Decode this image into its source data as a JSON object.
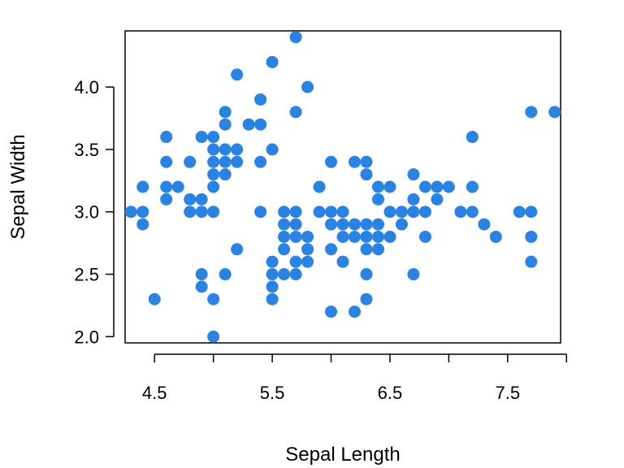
{
  "chart_data": {
    "type": "scatter",
    "title": "",
    "xlabel": "Sepal Length",
    "ylabel": "Sepal Width",
    "xlim": [
      4.25,
      7.95
    ],
    "ylim": [
      1.95,
      4.45
    ],
    "x_ticks": [
      4.5,
      5,
      5.5,
      6,
      6.5,
      7,
      7.5,
      8
    ],
    "x_tick_labels": [
      "4.5",
      "",
      "5.5",
      "",
      "6.5",
      "",
      "7.5",
      ""
    ],
    "y_ticks": [
      2.0,
      2.5,
      3.0,
      3.5,
      4.0
    ],
    "y_tick_labels": [
      "2.0",
      "2.5",
      "3.0",
      "3.5",
      "4.0"
    ],
    "grid": false,
    "marker_color": "#2A83E2",
    "series": [
      {
        "points": [
          [
            4.3,
            3.0
          ],
          [
            4.4,
            3.0
          ],
          [
            4.4,
            2.9
          ],
          [
            4.4,
            3.2
          ],
          [
            4.5,
            2.3
          ],
          [
            4.6,
            3.6
          ],
          [
            4.6,
            3.4
          ],
          [
            4.6,
            3.2
          ],
          [
            4.6,
            3.1
          ],
          [
            4.7,
            3.2
          ],
          [
            4.8,
            3.4
          ],
          [
            4.8,
            3.1
          ],
          [
            4.8,
            3.0
          ],
          [
            4.9,
            3.6
          ],
          [
            4.9,
            3.1
          ],
          [
            4.9,
            3.0
          ],
          [
            4.9,
            2.5
          ],
          [
            4.9,
            2.4
          ],
          [
            5.0,
            3.6
          ],
          [
            5.0,
            3.5
          ],
          [
            5.0,
            3.4
          ],
          [
            5.0,
            3.3
          ],
          [
            5.0,
            3.2
          ],
          [
            5.0,
            3.0
          ],
          [
            5.0,
            2.3
          ],
          [
            5.0,
            2.0
          ],
          [
            5.1,
            3.8
          ],
          [
            5.1,
            3.7
          ],
          [
            5.1,
            3.5
          ],
          [
            5.1,
            3.4
          ],
          [
            5.1,
            3.3
          ],
          [
            5.1,
            2.5
          ],
          [
            5.2,
            4.1
          ],
          [
            5.2,
            3.5
          ],
          [
            5.2,
            3.4
          ],
          [
            5.2,
            2.7
          ],
          [
            5.3,
            3.7
          ],
          [
            5.4,
            3.9
          ],
          [
            5.4,
            3.7
          ],
          [
            5.4,
            3.4
          ],
          [
            5.4,
            3.0
          ],
          [
            5.5,
            4.2
          ],
          [
            5.5,
            3.5
          ],
          [
            5.5,
            2.6
          ],
          [
            5.5,
            2.5
          ],
          [
            5.5,
            2.4
          ],
          [
            5.5,
            2.3
          ],
          [
            5.6,
            3.0
          ],
          [
            5.6,
            2.9
          ],
          [
            5.6,
            2.8
          ],
          [
            5.6,
            2.7
          ],
          [
            5.6,
            2.5
          ],
          [
            5.7,
            4.4
          ],
          [
            5.7,
            3.8
          ],
          [
            5.7,
            3.0
          ],
          [
            5.7,
            2.9
          ],
          [
            5.7,
            2.8
          ],
          [
            5.7,
            2.6
          ],
          [
            5.7,
            2.5
          ],
          [
            5.8,
            4.0
          ],
          [
            5.8,
            2.8
          ],
          [
            5.8,
            2.7
          ],
          [
            5.8,
            2.6
          ],
          [
            5.9,
            3.2
          ],
          [
            5.9,
            3.0
          ],
          [
            6.0,
            3.4
          ],
          [
            6.0,
            3.0
          ],
          [
            6.0,
            2.9
          ],
          [
            6.0,
            2.7
          ],
          [
            6.0,
            2.2
          ],
          [
            6.1,
            3.0
          ],
          [
            6.1,
            2.9
          ],
          [
            6.1,
            2.8
          ],
          [
            6.1,
            2.6
          ],
          [
            6.2,
            3.4
          ],
          [
            6.2,
            2.9
          ],
          [
            6.2,
            2.8
          ],
          [
            6.2,
            2.2
          ],
          [
            6.3,
            3.4
          ],
          [
            6.3,
            3.3
          ],
          [
            6.3,
            2.9
          ],
          [
            6.3,
            2.8
          ],
          [
            6.3,
            2.7
          ],
          [
            6.3,
            2.5
          ],
          [
            6.3,
            2.3
          ],
          [
            6.4,
            3.2
          ],
          [
            6.4,
            3.1
          ],
          [
            6.4,
            2.9
          ],
          [
            6.4,
            2.8
          ],
          [
            6.4,
            2.7
          ],
          [
            6.5,
            3.2
          ],
          [
            6.5,
            3.0
          ],
          [
            6.5,
            2.8
          ],
          [
            6.6,
            3.0
          ],
          [
            6.6,
            2.9
          ],
          [
            6.7,
            3.3
          ],
          [
            6.7,
            3.1
          ],
          [
            6.7,
            3.0
          ],
          [
            6.7,
            2.5
          ],
          [
            6.8,
            3.2
          ],
          [
            6.8,
            3.0
          ],
          [
            6.8,
            2.8
          ],
          [
            6.9,
            3.2
          ],
          [
            6.9,
            3.1
          ],
          [
            7.0,
            3.2
          ],
          [
            7.1,
            3.0
          ],
          [
            7.2,
            3.6
          ],
          [
            7.2,
            3.2
          ],
          [
            7.2,
            3.0
          ],
          [
            7.3,
            2.9
          ],
          [
            7.4,
            2.8
          ],
          [
            7.6,
            3.0
          ],
          [
            7.7,
            3.8
          ],
          [
            7.7,
            3.0
          ],
          [
            7.7,
            2.8
          ],
          [
            7.7,
            2.6
          ],
          [
            7.9,
            3.8
          ]
        ]
      }
    ]
  }
}
